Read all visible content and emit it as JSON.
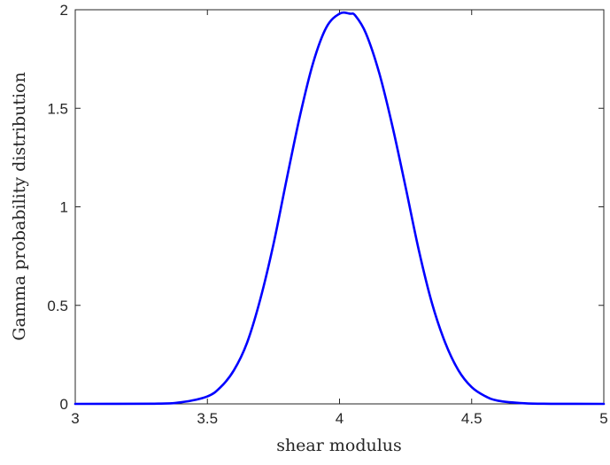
{
  "chart_data": {
    "type": "line",
    "title": "",
    "xlabel": "shear modulus",
    "ylabel": "Gamma probability distribution",
    "xlim": [
      3,
      5
    ],
    "ylim": [
      0,
      2
    ],
    "xticks": [
      3,
      3.5,
      4,
      4.5,
      5
    ],
    "xtick_labels": [
      "3",
      "3.5",
      "4",
      "4.5",
      "5"
    ],
    "yticks": [
      0,
      0.5,
      1,
      1.5,
      2
    ],
    "ytick_labels": [
      "0",
      "0.5",
      "1",
      "1.5",
      "2"
    ],
    "grid": false,
    "series": [
      {
        "color": "#0000ff",
        "x": [
          3.0,
          3.3,
          3.4,
          3.5,
          3.55,
          3.6,
          3.65,
          3.7,
          3.75,
          3.8,
          3.85,
          3.9,
          3.95,
          4.0,
          4.04,
          4.06,
          4.1,
          4.15,
          4.2,
          4.25,
          4.3,
          4.35,
          4.4,
          4.45,
          4.5,
          4.55,
          4.6,
          4.7,
          4.8,
          5.0
        ],
        "y": [
          0.0,
          0.001,
          0.008,
          0.038,
          0.085,
          0.17,
          0.31,
          0.53,
          0.81,
          1.14,
          1.46,
          1.73,
          1.91,
          1.98,
          1.98,
          1.97,
          1.88,
          1.68,
          1.41,
          1.1,
          0.78,
          0.51,
          0.31,
          0.17,
          0.085,
          0.04,
          0.016,
          0.003,
          0.0005,
          0.0
        ]
      }
    ]
  }
}
